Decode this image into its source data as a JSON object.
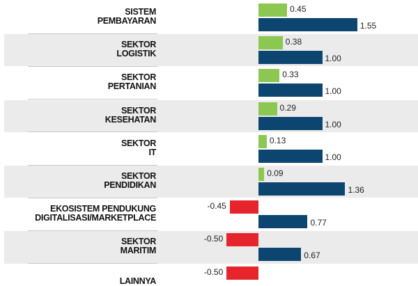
{
  "chart_data": {
    "type": "bar",
    "orientation": "horizontal",
    "categories": [
      [
        "SISTEM",
        "PEMBAYARAN"
      ],
      [
        "SEKTOR",
        "LOGISTIK"
      ],
      [
        "SEKTOR",
        "PERTANIAN"
      ],
      [
        "SEKTOR",
        "KESEHATAN"
      ],
      [
        "SEKTOR",
        "IT"
      ],
      [
        "SEKTOR",
        "PENDIDIKAN"
      ],
      [
        "EKOSISTEM PENDUKUNG",
        "DIGITALISASI/MARKETPLACE"
      ],
      [
        "SEKTOR",
        "MARITIM"
      ],
      [
        "LAINNYA"
      ]
    ],
    "series": [
      {
        "name": "series-1",
        "values": [
          0.45,
          0.38,
          0.33,
          0.29,
          0.13,
          0.09,
          -0.45,
          -0.5,
          -0.5
        ],
        "labels": [
          "0.45",
          "0.38",
          "0.33",
          "0.29",
          "0.13",
          "0.09",
          "-0.45",
          "-0.50",
          "-0.50"
        ]
      },
      {
        "name": "series-2",
        "values": [
          1.55,
          1.0,
          1.0,
          1.0,
          1.0,
          1.36,
          0.77,
          0.67,
          null
        ],
        "labels": [
          "1.55",
          "1.00",
          "1.00",
          "1.00",
          "1.00",
          "1.36",
          "0.77",
          "0.67",
          ""
        ]
      }
    ],
    "colors": {
      "positive": "#8cc751",
      "negative": "#e5242b",
      "series2": "#0c4670",
      "band": "#ebebeb"
    },
    "xlim": [
      -0.5,
      2.2
    ]
  }
}
